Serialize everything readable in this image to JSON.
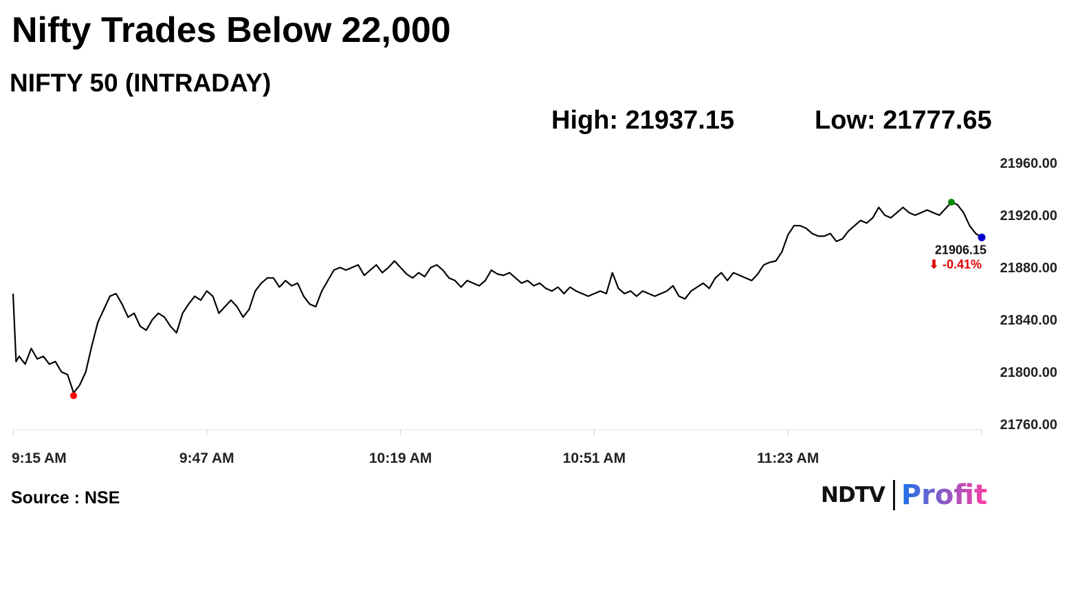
{
  "header": {
    "title": "Nifty Trades Below 22,000",
    "subtitle": "NIFTY 50 (INTRADAY)",
    "high_text": "High: 21937.15",
    "low_text": "Low: 21777.65"
  },
  "footer": {
    "source": "Source : NSE",
    "logo_left": "NDTV",
    "logo_right": "Profit"
  },
  "colors": {
    "line": "#000000",
    "low_marker": "#ff0000",
    "high_marker": "#0a8a0a",
    "last_marker": "#0000cc",
    "change_negative": "#e00000",
    "logo_profit_start": "#1a73e8",
    "logo_profit_end": "#ff3fa4"
  },
  "chart_data": {
    "type": "line",
    "title": "NIFTY 50 (INTRADAY)",
    "x_start": "9:15 AM",
    "x_tick_labels": [
      "9:15 AM",
      "9:47 AM",
      "10:19 AM",
      "10:51 AM",
      "11:23 AM"
    ],
    "x_tick_minutes": [
      555,
      587,
      619,
      651,
      683
    ],
    "x_range_minutes": [
      555,
      715
    ],
    "y_tick_labels": [
      "21960.00",
      "21920.00",
      "21880.00",
      "21840.00",
      "21800.00",
      "21760.00"
    ],
    "ylim": [
      21760,
      21960
    ],
    "grid": false,
    "high": 21937.15,
    "low": 21777.65,
    "last_value_label": "21906.15",
    "change_label": "⬇ -0.41%",
    "series": [
      {
        "points": [
          [
            555.0,
            21860
          ],
          [
            555.5,
            21808
          ],
          [
            556.0,
            21812
          ],
          [
            557.0,
            21806
          ],
          [
            558.0,
            21818
          ],
          [
            559.0,
            21810
          ],
          [
            560.0,
            21812
          ],
          [
            561.0,
            21806
          ],
          [
            562.0,
            21808
          ],
          [
            563.0,
            21800
          ],
          [
            564.0,
            21798
          ],
          [
            565.0,
            21784
          ],
          [
            566.0,
            21790
          ],
          [
            567.0,
            21800
          ],
          [
            568.0,
            21820
          ],
          [
            569.0,
            21838
          ],
          [
            570.0,
            21848
          ],
          [
            571.0,
            21858
          ],
          [
            572.0,
            21860
          ],
          [
            573.0,
            21852
          ],
          [
            574.0,
            21842
          ],
          [
            575.0,
            21845
          ],
          [
            576.0,
            21835
          ],
          [
            577.0,
            21832
          ],
          [
            578.0,
            21840
          ],
          [
            579.0,
            21845
          ],
          [
            580.0,
            21842
          ],
          [
            581.0,
            21835
          ],
          [
            582.0,
            21830
          ],
          [
            583.0,
            21845
          ],
          [
            584.0,
            21852
          ],
          [
            585.0,
            21858
          ],
          [
            586.0,
            21855
          ],
          [
            587.0,
            21862
          ],
          [
            588.0,
            21858
          ],
          [
            589.0,
            21845
          ],
          [
            590.0,
            21850
          ],
          [
            591.0,
            21855
          ],
          [
            592.0,
            21850
          ],
          [
            593.0,
            21842
          ],
          [
            594.0,
            21848
          ],
          [
            595.0,
            21862
          ],
          [
            596.0,
            21868
          ],
          [
            597.0,
            21872
          ],
          [
            598.0,
            21872
          ],
          [
            599.0,
            21865
          ],
          [
            600.0,
            21870
          ],
          [
            601.0,
            21866
          ],
          [
            602.0,
            21868
          ],
          [
            603.0,
            21858
          ],
          [
            604.0,
            21852
          ],
          [
            605.0,
            21850
          ],
          [
            606.0,
            21862
          ],
          [
            607.0,
            21870
          ],
          [
            608.0,
            21878
          ],
          [
            609.0,
            21880
          ],
          [
            610.0,
            21878
          ],
          [
            611.0,
            21880
          ],
          [
            612.0,
            21882
          ],
          [
            613.0,
            21874
          ],
          [
            614.0,
            21878
          ],
          [
            615.0,
            21882
          ],
          [
            616.0,
            21876
          ],
          [
            617.0,
            21880
          ],
          [
            618.0,
            21885
          ],
          [
            619.0,
            21880
          ],
          [
            620.0,
            21875
          ],
          [
            621.0,
            21872
          ],
          [
            622.0,
            21876
          ],
          [
            623.0,
            21873
          ],
          [
            624.0,
            21880
          ],
          [
            625.0,
            21882
          ],
          [
            626.0,
            21878
          ],
          [
            627.0,
            21872
          ],
          [
            628.0,
            21870
          ],
          [
            629.0,
            21865
          ],
          [
            630.0,
            21870
          ],
          [
            631.0,
            21868
          ],
          [
            632.0,
            21866
          ],
          [
            633.0,
            21870
          ],
          [
            634.0,
            21878
          ],
          [
            635.0,
            21875
          ],
          [
            636.0,
            21874
          ],
          [
            637.0,
            21876
          ],
          [
            638.0,
            21872
          ],
          [
            639.0,
            21868
          ],
          [
            640.0,
            21870
          ],
          [
            641.0,
            21866
          ],
          [
            642.0,
            21868
          ],
          [
            643.0,
            21864
          ],
          [
            644.0,
            21862
          ],
          [
            645.0,
            21865
          ],
          [
            646.0,
            21860
          ],
          [
            647.0,
            21865
          ],
          [
            648.0,
            21862
          ],
          [
            649.0,
            21860
          ],
          [
            650.0,
            21858
          ],
          [
            651.0,
            21860
          ],
          [
            652.0,
            21862
          ],
          [
            653.0,
            21860
          ],
          [
            654.0,
            21876
          ],
          [
            655.0,
            21864
          ],
          [
            656.0,
            21860
          ],
          [
            657.0,
            21862
          ],
          [
            658.0,
            21858
          ],
          [
            659.0,
            21862
          ],
          [
            660.0,
            21860
          ],
          [
            661.0,
            21858
          ],
          [
            662.0,
            21860
          ],
          [
            663.0,
            21862
          ],
          [
            664.0,
            21866
          ],
          [
            665.0,
            21858
          ],
          [
            666.0,
            21856
          ],
          [
            667.0,
            21862
          ],
          [
            668.0,
            21865
          ],
          [
            669.0,
            21868
          ],
          [
            670.0,
            21864
          ],
          [
            671.0,
            21872
          ],
          [
            672.0,
            21876
          ],
          [
            673.0,
            21870
          ],
          [
            674.0,
            21876
          ],
          [
            675.0,
            21874
          ],
          [
            676.0,
            21872
          ],
          [
            677.0,
            21870
          ],
          [
            678.0,
            21875
          ],
          [
            679.0,
            21882
          ],
          [
            680.0,
            21884
          ],
          [
            681.0,
            21885
          ],
          [
            682.0,
            21892
          ],
          [
            683.0,
            21905
          ],
          [
            684.0,
            21912
          ],
          [
            685.0,
            21912
          ],
          [
            686.0,
            21910
          ],
          [
            687.0,
            21906
          ],
          [
            688.0,
            21904
          ],
          [
            689.0,
            21904
          ],
          [
            690.0,
            21906
          ],
          [
            691.0,
            21900
          ],
          [
            692.0,
            21902
          ],
          [
            693.0,
            21908
          ],
          [
            694.0,
            21912
          ],
          [
            695.0,
            21916
          ],
          [
            696.0,
            21914
          ],
          [
            697.0,
            21918
          ],
          [
            698.0,
            21926
          ],
          [
            699.0,
            21920
          ],
          [
            700.0,
            21918
          ],
          [
            701.0,
            21922
          ],
          [
            702.0,
            21926
          ],
          [
            703.0,
            21922
          ],
          [
            704.0,
            21920
          ],
          [
            705.0,
            21922
          ],
          [
            706.0,
            21924
          ],
          [
            707.0,
            21922
          ],
          [
            708.0,
            21920
          ],
          [
            709.0,
            21925
          ],
          [
            710.0,
            21930
          ],
          [
            711.0,
            21928
          ],
          [
            712.0,
            21922
          ],
          [
            713.0,
            21912
          ],
          [
            714.0,
            21906
          ],
          [
            715.0,
            21903
          ]
        ]
      }
    ]
  }
}
